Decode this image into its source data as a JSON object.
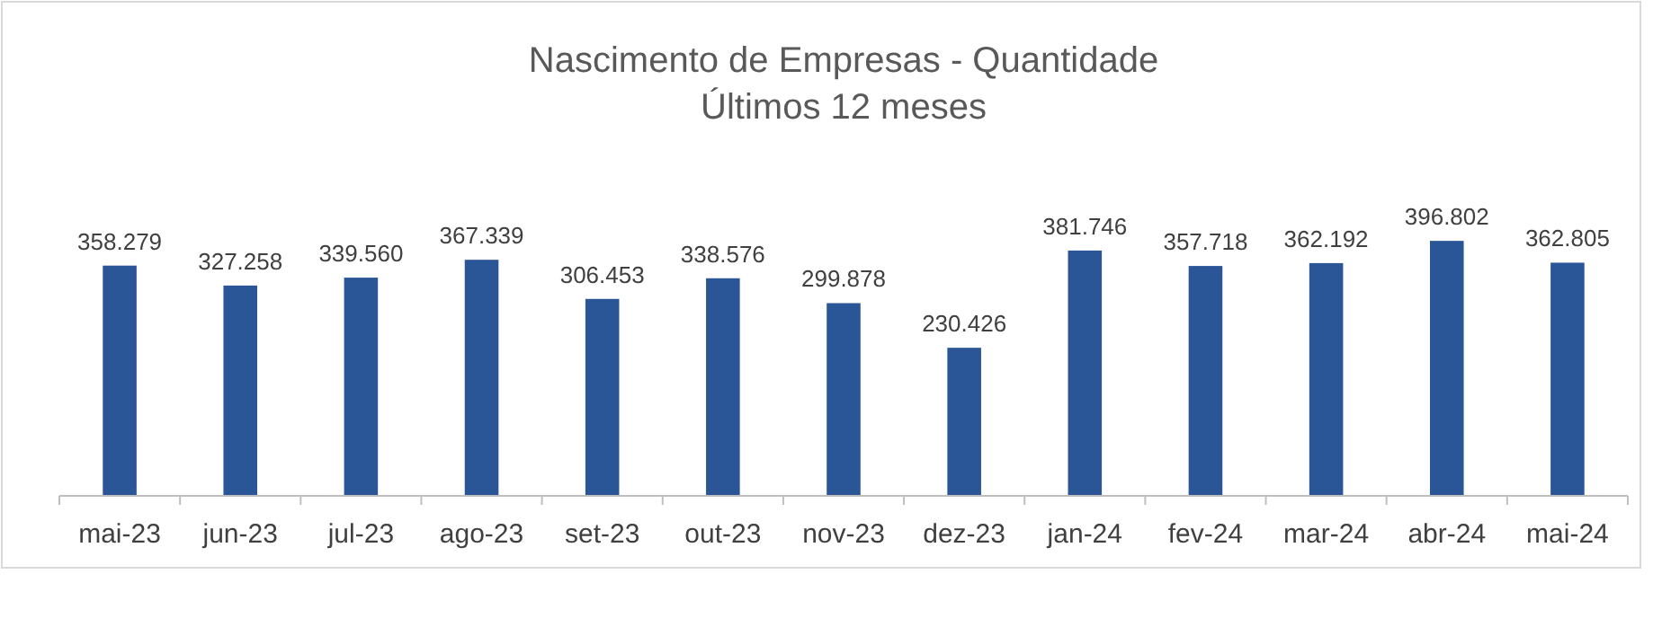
{
  "chart_data": {
    "type": "bar",
    "title": "Nascimento de Empresas - Quantidade",
    "subtitle": "Últimos 12 meses",
    "categories": [
      "mai-23",
      "jun-23",
      "jul-23",
      "ago-23",
      "set-23",
      "out-23",
      "nov-23",
      "dez-23",
      "jan-24",
      "fev-24",
      "mar-24",
      "abr-24",
      "mai-24"
    ],
    "values": [
      358279,
      327258,
      339560,
      367339,
      306453,
      338576,
      299878,
      230426,
      381746,
      357718,
      362192,
      396802,
      362805
    ],
    "value_labels": [
      "358.279",
      "327.258",
      "339.560",
      "367.339",
      "306.453",
      "338.576",
      "299.878",
      "230.426",
      "381.746",
      "357.718",
      "362.192",
      "396.802",
      "362.805"
    ],
    "color": "#2a5597"
  }
}
